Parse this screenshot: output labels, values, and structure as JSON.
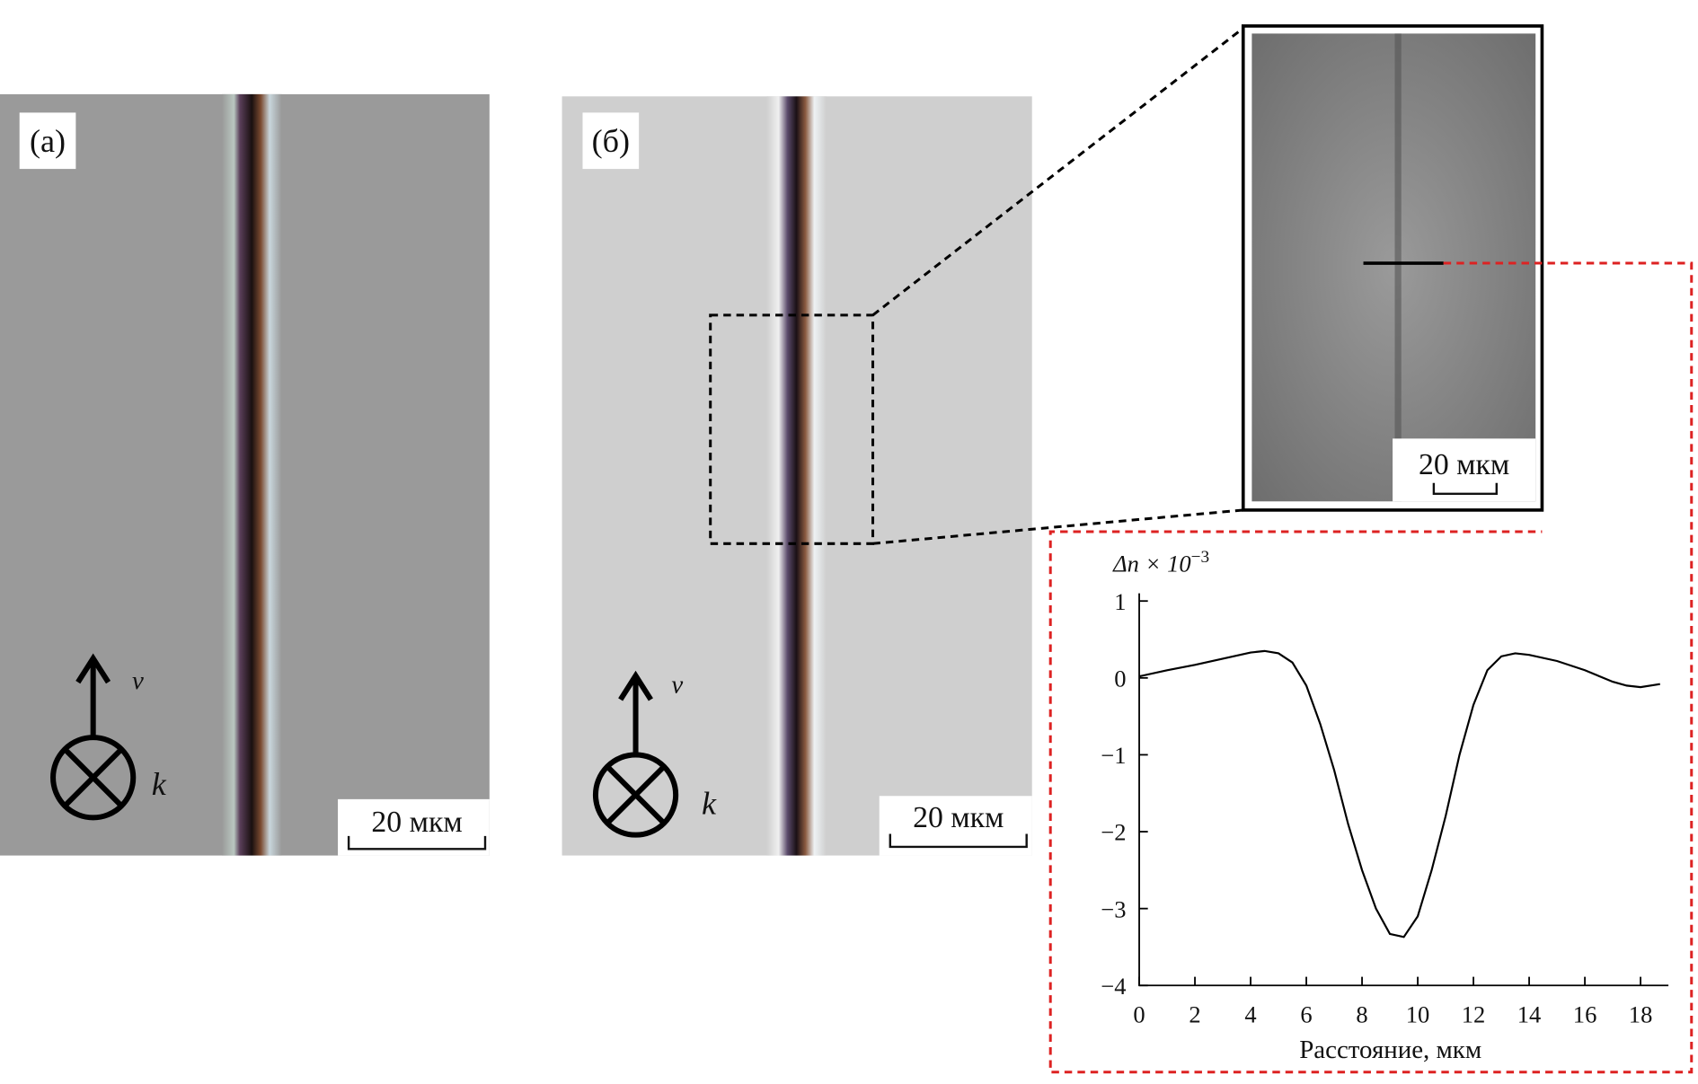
{
  "panels": [
    {
      "label": "(а)",
      "scale_bar": "20 мкм",
      "velocity": "v",
      "wave_vector": "k"
    },
    {
      "label": "(б)",
      "scale_bar": "20 мкм",
      "velocity": "v",
      "wave_vector": "k"
    }
  ],
  "inset": {
    "scale_bar": "20 мкм"
  },
  "chart_data": {
    "type": "line",
    "y_label": "Δn × 10",
    "y_label_exponent": "−3",
    "x_label": "Расстояние, мкм",
    "x": [
      0,
      1,
      2,
      3,
      4,
      4.5,
      5,
      5.5,
      6,
      6.5,
      7,
      7.5,
      8,
      8.5,
      9,
      9.5,
      10,
      10.5,
      11,
      11.5,
      12,
      12.5,
      13,
      13.5,
      14,
      15,
      16,
      17,
      17.5,
      18,
      18.7
    ],
    "series": [
      {
        "color": "#000000",
        "values": [
          0.02,
          0.1,
          0.17,
          0.25,
          0.33,
          0.35,
          0.32,
          0.2,
          -0.1,
          -0.6,
          -1.2,
          -1.9,
          -2.5,
          -3.0,
          -3.33,
          -3.37,
          -3.1,
          -2.5,
          -1.8,
          -1.0,
          -0.35,
          0.1,
          0.28,
          0.32,
          0.3,
          0.22,
          0.1,
          -0.05,
          -0.1,
          -0.12,
          -0.08
        ]
      }
    ],
    "xlim": [
      0,
      19
    ],
    "ylim": [
      -4,
      1.1
    ],
    "xticks": [
      0,
      2,
      4,
      6,
      8,
      10,
      12,
      14,
      16,
      18
    ],
    "yticks": [
      {
        "value": -4,
        "label": "−4"
      },
      {
        "value": -3,
        "label": "−3"
      },
      {
        "value": -2,
        "label": "−2"
      },
      {
        "value": -1,
        "label": "−1"
      },
      0,
      1
    ]
  }
}
